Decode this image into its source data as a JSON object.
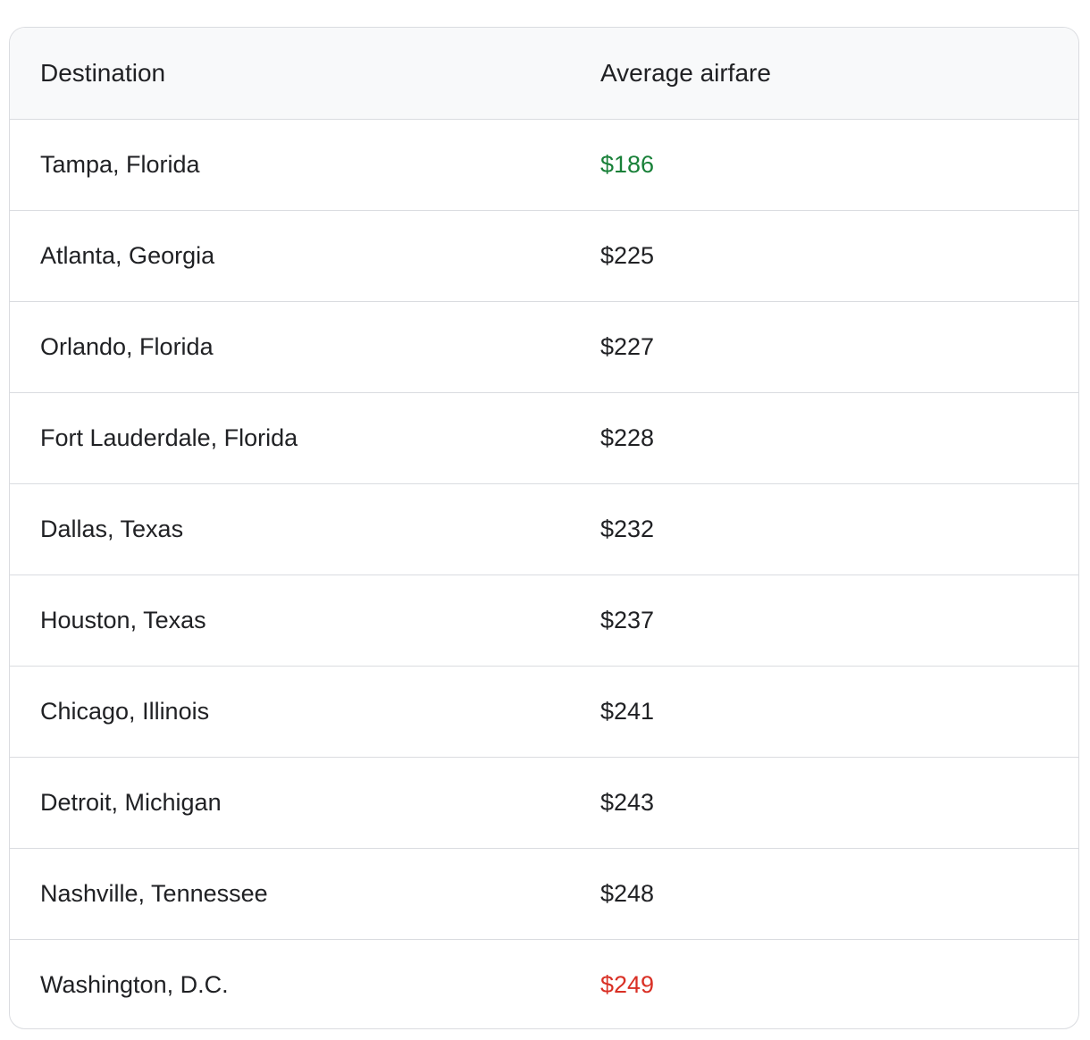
{
  "table": {
    "headers": {
      "destination": "Destination",
      "fare": "Average airfare"
    },
    "colors": {
      "text": "#202124",
      "lowest": "#188038",
      "highest": "#d93025",
      "border": "#dadce0",
      "header_bg": "#f8f9fa"
    },
    "rows": [
      {
        "destination": "Tampa, Florida",
        "fare": "$186",
        "highlight": "lowest"
      },
      {
        "destination": "Atlanta, Georgia",
        "fare": "$225",
        "highlight": ""
      },
      {
        "destination": "Orlando, Florida",
        "fare": "$227",
        "highlight": ""
      },
      {
        "destination": "Fort Lauderdale, Florida",
        "fare": "$228",
        "highlight": ""
      },
      {
        "destination": "Dallas, Texas",
        "fare": "$232",
        "highlight": ""
      },
      {
        "destination": "Houston, Texas",
        "fare": "$237",
        "highlight": ""
      },
      {
        "destination": "Chicago, Illinois",
        "fare": "$241",
        "highlight": ""
      },
      {
        "destination": "Detroit, Michigan",
        "fare": "$243",
        "highlight": ""
      },
      {
        "destination": "Nashville, Tennessee",
        "fare": "$248",
        "highlight": ""
      },
      {
        "destination": "Washington, D.C.",
        "fare": "$249",
        "highlight": "highest"
      }
    ]
  }
}
